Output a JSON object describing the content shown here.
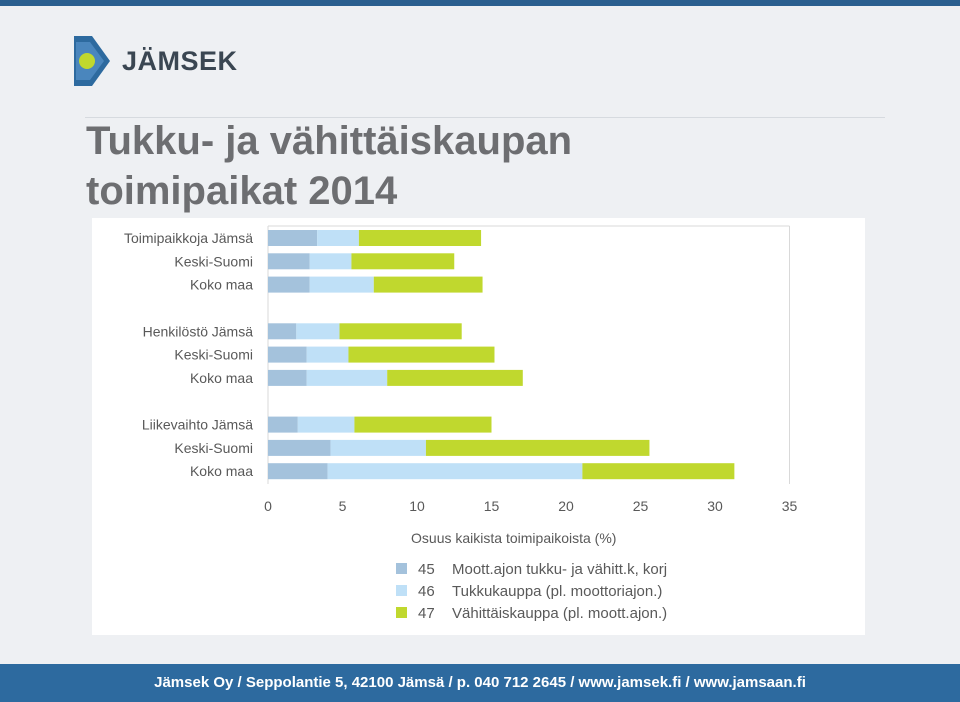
{
  "brand": {
    "name": "JÄMSEK"
  },
  "title": {
    "line1": "Tukku- ja vähittäiskaupan",
    "line2": "toimipaikat 2014"
  },
  "footer": {
    "text": "Jämsek Oy / Seppolantie 5, 42100 Jämsä / p. 040 712 2645 / www.jamsek.fi / www.jamsaan.fi"
  },
  "chart_data": {
    "type": "bar",
    "orientation": "horizontal",
    "stacked": true,
    "xlabel": "Osuus kaikista toimipaikoista (%)",
    "xlim": [
      0,
      35
    ],
    "xticks": [
      0,
      5,
      10,
      15,
      20,
      25,
      30,
      35
    ],
    "groups": [
      {
        "name": "Toimipaikkoja",
        "categories": [
          "Jämsä",
          "Keski-Suomi",
          "Koko maa"
        ]
      },
      {
        "name": "Henkilöstö",
        "categories": [
          "Jämsä",
          "Keski-Suomi",
          "Koko maa"
        ]
      },
      {
        "name": "Liikevaihto",
        "categories": [
          "Jämsä",
          "Keski-Suomi",
          "Koko maa"
        ]
      }
    ],
    "series": [
      {
        "code": "45",
        "name": "Moott.ajon tukku- ja vähitt.k, korj",
        "color": "#a4c2dc",
        "values": [
          3.3,
          2.8,
          2.8,
          1.9,
          2.6,
          2.6,
          2.0,
          4.2,
          4.0
        ]
      },
      {
        "code": "46",
        "name": "Tukkukauppa (pl. moottoriajon.)",
        "color": "#bfe0f7",
        "values": [
          2.8,
          2.8,
          4.3,
          2.9,
          2.8,
          5.4,
          3.8,
          6.4,
          17.1
        ]
      },
      {
        "code": "47",
        "name": "Vähittäiskauppa (pl. moott.ajon.)",
        "color": "#c0d82e",
        "values": [
          8.2,
          6.9,
          7.3,
          8.2,
          9.8,
          9.1,
          9.2,
          15.0,
          10.2
        ]
      }
    ],
    "legend_position": "bottom",
    "grid": false
  }
}
